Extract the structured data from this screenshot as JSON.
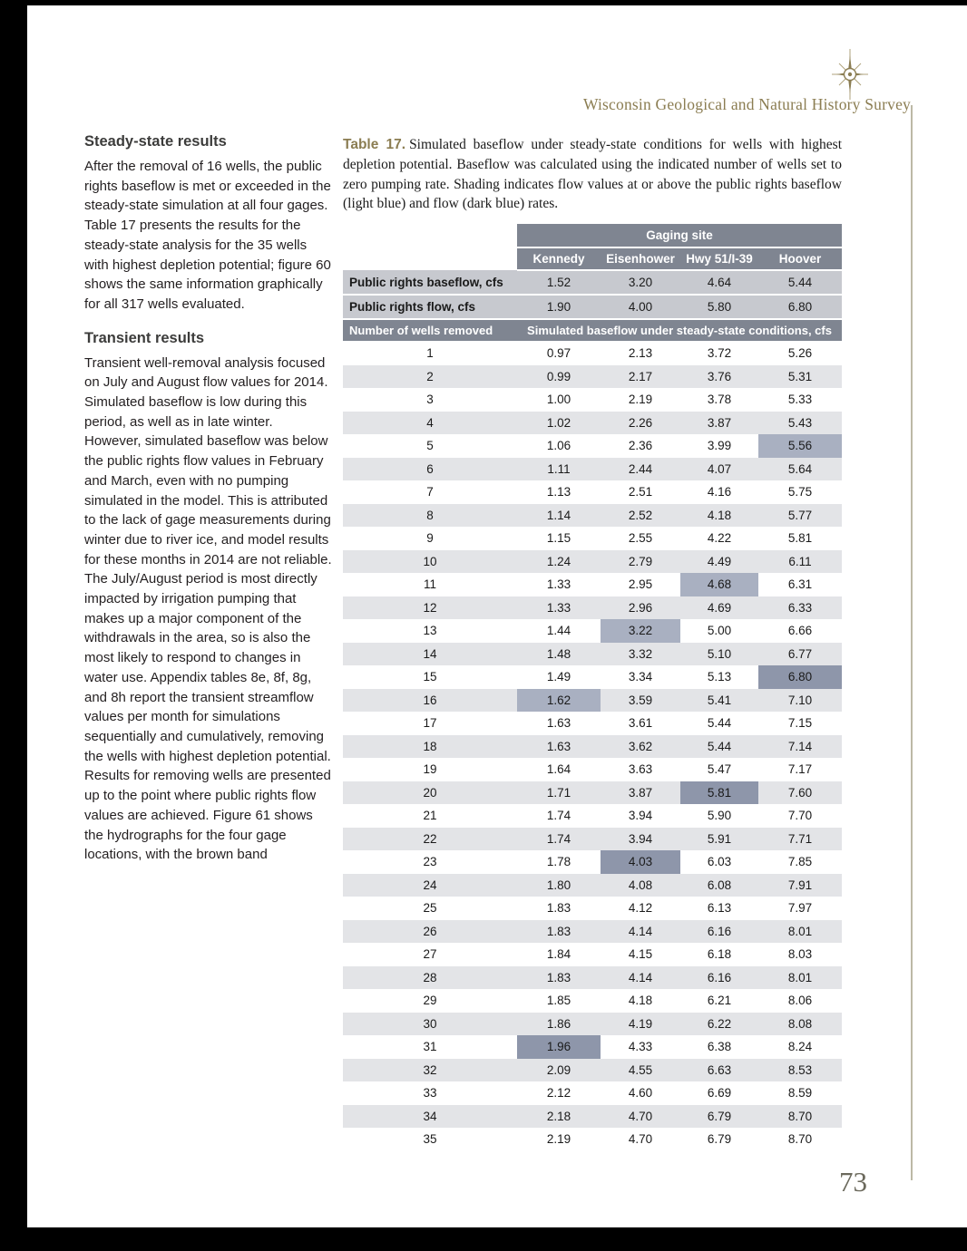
{
  "page": {
    "masthead": "Wisconsin Geological and Natural History Survey",
    "page_number": "73"
  },
  "colors": {
    "accent_olive": "#8b7d52",
    "table_header_gray": "#7f8591",
    "public_rights_row_gray": "#c7c9cf",
    "row_alt_gray": "#e3e4e7",
    "highlight_baseflow_light_blue": "#a9b0c1",
    "highlight_flow_dark_blue": "#8e96aa"
  },
  "left": {
    "sections": [
      {
        "heading": "Steady-state results",
        "body": "After the removal of 16 wells, the public rights baseflow is met or exceeded in the steady-state simulation at all four gages. Table 17 presents the results for the steady-state analysis for the 35 wells with highest depletion potential; figure 60 shows the same information graphically for all 317 wells evaluated."
      },
      {
        "heading": "Transient results",
        "body": "Transient well-removal analysis focused on July and August flow values for 2014. Simulated baseflow is low during this period, as well as in late winter. However, simulated baseflow was below the public rights flow values in February and March, even with no pumping simulated in the model. This is attributed to the lack of gage measurements during winter due to river ice, and model results for these months in 2014 are not reliable. The July/August period is most directly impacted by irrigation pumping that makes up a major component of the withdrawals in the area, so is also the most likely to respond to changes in water use. Appendix tables 8e, 8f, 8g, and 8h report the transient streamflow values per month for simulations sequentially and cumulatively, removing the wells with highest depletion potential. Results for removing wells are presented up to the point where public rights flow values are achieved. Figure 61 shows the hydrographs for the four gage locations, with the brown band"
      }
    ]
  },
  "table": {
    "caption_label": "Table 17.",
    "caption_text": "Simulated baseflow under steady-state conditions for wells with highest depletion potential. Baseflow was calculated using the indicated number of wells set to zero pumping rate. Shading indicates flow values at or above the public rights baseflow (light blue) and flow (dark blue) rates.",
    "gaging_site_header": "Gaging site",
    "columns": [
      "Kennedy",
      "Eisenhower",
      "Hwy 51/I-39",
      "Hoover"
    ],
    "baseflow_row": {
      "label": "Public rights baseflow, cfs",
      "values": [
        "1.52",
        "3.20",
        "4.64",
        "5.44"
      ]
    },
    "flow_row": {
      "label": "Public rights flow, cfs",
      "values": [
        "1.90",
        "4.00",
        "5.80",
        "6.80"
      ]
    },
    "wells_header": "Number of wells removed",
    "sim_header": "Simulated baseflow under steady-state conditions, cfs",
    "rows": [
      {
        "n": "1",
        "values": [
          "0.97",
          "2.13",
          "3.72",
          "5.26"
        ],
        "highlights": [
          0,
          0,
          0,
          0
        ]
      },
      {
        "n": "2",
        "values": [
          "0.99",
          "2.17",
          "3.76",
          "5.31"
        ],
        "highlights": [
          0,
          0,
          0,
          0
        ]
      },
      {
        "n": "3",
        "values": [
          "1.00",
          "2.19",
          "3.78",
          "5.33"
        ],
        "highlights": [
          0,
          0,
          0,
          0
        ]
      },
      {
        "n": "4",
        "values": [
          "1.02",
          "2.26",
          "3.87",
          "5.43"
        ],
        "highlights": [
          0,
          0,
          0,
          0
        ]
      },
      {
        "n": "5",
        "values": [
          "1.06",
          "2.36",
          "3.99",
          "5.56"
        ],
        "highlights": [
          0,
          0,
          0,
          1
        ]
      },
      {
        "n": "6",
        "values": [
          "1.11",
          "2.44",
          "4.07",
          "5.64"
        ],
        "highlights": [
          0,
          0,
          0,
          0
        ]
      },
      {
        "n": "7",
        "values": [
          "1.13",
          "2.51",
          "4.16",
          "5.75"
        ],
        "highlights": [
          0,
          0,
          0,
          0
        ]
      },
      {
        "n": "8",
        "values": [
          "1.14",
          "2.52",
          "4.18",
          "5.77"
        ],
        "highlights": [
          0,
          0,
          0,
          0
        ]
      },
      {
        "n": "9",
        "values": [
          "1.15",
          "2.55",
          "4.22",
          "5.81"
        ],
        "highlights": [
          0,
          0,
          0,
          0
        ]
      },
      {
        "n": "10",
        "values": [
          "1.24",
          "2.79",
          "4.49",
          "6.11"
        ],
        "highlights": [
          0,
          0,
          0,
          0
        ]
      },
      {
        "n": "11",
        "values": [
          "1.33",
          "2.95",
          "4.68",
          "6.31"
        ],
        "highlights": [
          0,
          0,
          1,
          0
        ]
      },
      {
        "n": "12",
        "values": [
          "1.33",
          "2.96",
          "4.69",
          "6.33"
        ],
        "highlights": [
          0,
          0,
          0,
          0
        ]
      },
      {
        "n": "13",
        "values": [
          "1.44",
          "3.22",
          "5.00",
          "6.66"
        ],
        "highlights": [
          0,
          1,
          0,
          0
        ]
      },
      {
        "n": "14",
        "values": [
          "1.48",
          "3.32",
          "5.10",
          "6.77"
        ],
        "highlights": [
          0,
          0,
          0,
          0
        ]
      },
      {
        "n": "15",
        "values": [
          "1.49",
          "3.34",
          "5.13",
          "6.80"
        ],
        "highlights": [
          0,
          0,
          0,
          2
        ]
      },
      {
        "n": "16",
        "values": [
          "1.62",
          "3.59",
          "5.41",
          "7.10"
        ],
        "highlights": [
          1,
          0,
          0,
          0
        ]
      },
      {
        "n": "17",
        "values": [
          "1.63",
          "3.61",
          "5.44",
          "7.15"
        ],
        "highlights": [
          0,
          0,
          0,
          0
        ]
      },
      {
        "n": "18",
        "values": [
          "1.63",
          "3.62",
          "5.44",
          "7.14"
        ],
        "highlights": [
          0,
          0,
          0,
          0
        ]
      },
      {
        "n": "19",
        "values": [
          "1.64",
          "3.63",
          "5.47",
          "7.17"
        ],
        "highlights": [
          0,
          0,
          0,
          0
        ]
      },
      {
        "n": "20",
        "values": [
          "1.71",
          "3.87",
          "5.81",
          "7.60"
        ],
        "highlights": [
          0,
          0,
          2,
          0
        ]
      },
      {
        "n": "21",
        "values": [
          "1.74",
          "3.94",
          "5.90",
          "7.70"
        ],
        "highlights": [
          0,
          0,
          0,
          0
        ]
      },
      {
        "n": "22",
        "values": [
          "1.74",
          "3.94",
          "5.91",
          "7.71"
        ],
        "highlights": [
          0,
          0,
          0,
          0
        ]
      },
      {
        "n": "23",
        "values": [
          "1.78",
          "4.03",
          "6.03",
          "7.85"
        ],
        "highlights": [
          0,
          2,
          0,
          0
        ]
      },
      {
        "n": "24",
        "values": [
          "1.80",
          "4.08",
          "6.08",
          "7.91"
        ],
        "highlights": [
          0,
          0,
          0,
          0
        ]
      },
      {
        "n": "25",
        "values": [
          "1.83",
          "4.12",
          "6.13",
          "7.97"
        ],
        "highlights": [
          0,
          0,
          0,
          0
        ]
      },
      {
        "n": "26",
        "values": [
          "1.83",
          "4.14",
          "6.16",
          "8.01"
        ],
        "highlights": [
          0,
          0,
          0,
          0
        ]
      },
      {
        "n": "27",
        "values": [
          "1.84",
          "4.15",
          "6.18",
          "8.03"
        ],
        "highlights": [
          0,
          0,
          0,
          0
        ]
      },
      {
        "n": "28",
        "values": [
          "1.83",
          "4.14",
          "6.16",
          "8.01"
        ],
        "highlights": [
          0,
          0,
          0,
          0
        ]
      },
      {
        "n": "29",
        "values": [
          "1.85",
          "4.18",
          "6.21",
          "8.06"
        ],
        "highlights": [
          0,
          0,
          0,
          0
        ]
      },
      {
        "n": "30",
        "values": [
          "1.86",
          "4.19",
          "6.22",
          "8.08"
        ],
        "highlights": [
          0,
          0,
          0,
          0
        ]
      },
      {
        "n": "31",
        "values": [
          "1.96",
          "4.33",
          "6.38",
          "8.24"
        ],
        "highlights": [
          2,
          0,
          0,
          0
        ]
      },
      {
        "n": "32",
        "values": [
          "2.09",
          "4.55",
          "6.63",
          "8.53"
        ],
        "highlights": [
          0,
          0,
          0,
          0
        ]
      },
      {
        "n": "33",
        "values": [
          "2.12",
          "4.60",
          "6.69",
          "8.59"
        ],
        "highlights": [
          0,
          0,
          0,
          0
        ]
      },
      {
        "n": "34",
        "values": [
          "2.18",
          "4.70",
          "6.79",
          "8.70"
        ],
        "highlights": [
          0,
          0,
          0,
          0
        ]
      },
      {
        "n": "35",
        "values": [
          "2.19",
          "4.70",
          "6.79",
          "8.70"
        ],
        "highlights": [
          0,
          0,
          0,
          0
        ]
      }
    ]
  }
}
